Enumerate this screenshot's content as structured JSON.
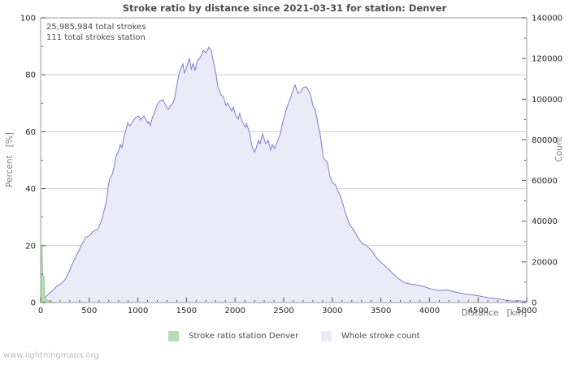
{
  "page": {
    "watermark": "www.lightningmaps.org"
  },
  "chart_data": {
    "type": "area",
    "title": "Stroke ratio by distance since 2021-03-31 for station: Denver",
    "annotation_lines": [
      "25,985,984 total strokes",
      "111 total strokes station"
    ],
    "x_axis": {
      "label": "Distance   [km]",
      "min": 0,
      "max": 5000,
      "major_step": 500,
      "minor_step": 100,
      "tick_labels": [
        "0",
        "500",
        "1000",
        "1500",
        "2000",
        "2500",
        "3000",
        "3500",
        "4000",
        "4500",
        "5000"
      ]
    },
    "left_axis": {
      "label": "Percent   [%]",
      "min": 0,
      "max": 100,
      "major_step": 20,
      "minor_step": 10,
      "grid": [
        20,
        40,
        60,
        80
      ],
      "tick_labels": [
        "0",
        "20",
        "40",
        "60",
        "80",
        "100"
      ]
    },
    "right_axis": {
      "label": "Count",
      "min": 0,
      "max": 140000,
      "major_step": 20000,
      "minor_step": 10000,
      "tick_labels": [
        "0",
        "20000",
        "40000",
        "60000",
        "80000",
        "100000",
        "120000",
        "140000"
      ]
    },
    "colors": {
      "grid": "#cdcdcd",
      "border": "#9b9b9b",
      "tick": "#4a4a4a",
      "tick_label": "#1f1f1f"
    },
    "legend_position": "bottom",
    "series": [
      {
        "name": "Stroke ratio station Denver",
        "axis": "left",
        "fill": "#b5dcb2",
        "stroke": "#8fc78f",
        "points": [
          [
            0,
            20
          ],
          [
            15,
            20
          ],
          [
            20,
            10
          ],
          [
            35,
            9
          ],
          [
            40,
            2
          ],
          [
            60,
            1
          ],
          [
            90,
            0.3
          ],
          [
            150,
            0
          ]
        ]
      },
      {
        "name": "Whole stroke count",
        "axis": "right",
        "fill": "#ebebf8",
        "stroke": "#7c7cd2",
        "points": [
          [
            0,
            0
          ],
          [
            42,
            2400
          ],
          [
            84,
            4300
          ],
          [
            125,
            6000
          ],
          [
            167,
            8000
          ],
          [
            209,
            9300
          ],
          [
            251,
            11200
          ],
          [
            293,
            15100
          ],
          [
            334,
            19900
          ],
          [
            376,
            23900
          ],
          [
            418,
            28000
          ],
          [
            460,
            31900
          ],
          [
            502,
            33000
          ],
          [
            543,
            35100
          ],
          [
            585,
            35800
          ],
          [
            610,
            38400
          ],
          [
            627,
            40300
          ],
          [
            652,
            45100
          ],
          [
            669,
            48300
          ],
          [
            686,
            53100
          ],
          [
            694,
            57000
          ],
          [
            711,
            61000
          ],
          [
            728,
            62200
          ],
          [
            736,
            63000
          ],
          [
            753,
            66200
          ],
          [
            778,
            72200
          ],
          [
            795,
            73800
          ],
          [
            811,
            76200
          ],
          [
            820,
            77700
          ],
          [
            836,
            76200
          ],
          [
            861,
            82200
          ],
          [
            878,
            85000
          ],
          [
            895,
            88200
          ],
          [
            903,
            87800
          ],
          [
            920,
            86900
          ],
          [
            945,
            88900
          ],
          [
            978,
            91000
          ],
          [
            1003,
            91700
          ],
          [
            1020,
            91000
          ],
          [
            1028,
            89700
          ],
          [
            1062,
            91700
          ],
          [
            1087,
            89700
          ],
          [
            1104,
            88200
          ],
          [
            1112,
            88900
          ],
          [
            1128,
            87000
          ],
          [
            1150,
            91000
          ],
          [
            1175,
            93800
          ],
          [
            1195,
            96900
          ],
          [
            1220,
            98700
          ],
          [
            1254,
            99700
          ],
          [
            1279,
            97700
          ],
          [
            1312,
            94900
          ],
          [
            1338,
            96900
          ],
          [
            1363,
            98100
          ],
          [
            1380,
            100800
          ],
          [
            1400,
            106400
          ],
          [
            1421,
            112000
          ],
          [
            1440,
            114800
          ],
          [
            1463,
            117300
          ],
          [
            1480,
            112700
          ],
          [
            1500,
            115500
          ],
          [
            1530,
            120100
          ],
          [
            1550,
            114800
          ],
          [
            1570,
            117600
          ],
          [
            1588,
            114100
          ],
          [
            1613,
            118900
          ],
          [
            1647,
            120800
          ],
          [
            1672,
            124000
          ],
          [
            1697,
            122800
          ],
          [
            1714,
            123900
          ],
          [
            1731,
            125600
          ],
          [
            1756,
            123600
          ],
          [
            1781,
            117600
          ],
          [
            1805,
            112000
          ],
          [
            1822,
            106100
          ],
          [
            1856,
            102100
          ],
          [
            1881,
            100900
          ],
          [
            1906,
            96900
          ],
          [
            1923,
            98100
          ],
          [
            1948,
            95800
          ],
          [
            1965,
            94100
          ],
          [
            1981,
            96200
          ],
          [
            2006,
            92100
          ],
          [
            2032,
            90200
          ],
          [
            2048,
            93000
          ],
          [
            2073,
            88900
          ],
          [
            2107,
            86200
          ],
          [
            2115,
            88200
          ],
          [
            2148,
            83700
          ],
          [
            2173,
            77000
          ],
          [
            2198,
            73800
          ],
          [
            2215,
            75700
          ],
          [
            2240,
            79800
          ],
          [
            2257,
            78100
          ],
          [
            2282,
            83000
          ],
          [
            2315,
            78100
          ],
          [
            2341,
            79800
          ],
          [
            2365,
            75000
          ],
          [
            2382,
            77700
          ],
          [
            2407,
            75700
          ],
          [
            2424,
            78100
          ],
          [
            2449,
            80900
          ],
          [
            2466,
            83000
          ],
          [
            2491,
            88900
          ],
          [
            2508,
            91700
          ],
          [
            2533,
            95800
          ],
          [
            2566,
            100100
          ],
          [
            2590,
            103600
          ],
          [
            2616,
            107000
          ],
          [
            2650,
            102900
          ],
          [
            2675,
            103700
          ],
          [
            2700,
            105700
          ],
          [
            2733,
            106100
          ],
          [
            2758,
            104200
          ],
          [
            2783,
            100900
          ],
          [
            2800,
            96900
          ],
          [
            2825,
            94900
          ],
          [
            2850,
            88200
          ],
          [
            2875,
            83000
          ],
          [
            2891,
            77000
          ],
          [
            2908,
            71000
          ],
          [
            2933,
            69900
          ],
          [
            2950,
            69000
          ],
          [
            2975,
            62200
          ],
          [
            3000,
            59100
          ],
          [
            3033,
            57800
          ],
          [
            3058,
            55000
          ],
          [
            3094,
            51100
          ],
          [
            3135,
            44200
          ],
          [
            3177,
            38400
          ],
          [
            3219,
            35800
          ],
          [
            3261,
            32300
          ],
          [
            3303,
            29100
          ],
          [
            3344,
            28300
          ],
          [
            3370,
            27200
          ],
          [
            3412,
            25100
          ],
          [
            3453,
            22000
          ],
          [
            3495,
            19900
          ],
          [
            3537,
            18300
          ],
          [
            3578,
            16400
          ],
          [
            3620,
            14400
          ],
          [
            3679,
            11900
          ],
          [
            3737,
            9900
          ],
          [
            3787,
            9200
          ],
          [
            3846,
            8800
          ],
          [
            3930,
            8000
          ],
          [
            4013,
            6700
          ],
          [
            4097,
            6000
          ],
          [
            4181,
            6200
          ],
          [
            4264,
            5200
          ],
          [
            4348,
            4300
          ],
          [
            4432,
            3900
          ],
          [
            4515,
            3200
          ],
          [
            4599,
            2400
          ],
          [
            4682,
            2000
          ],
          [
            4766,
            1300
          ],
          [
            4850,
            700
          ],
          [
            4920,
            840
          ],
          [
            5000,
            600
          ]
        ]
      }
    ]
  }
}
